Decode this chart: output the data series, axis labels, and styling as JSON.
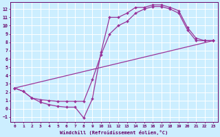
{
  "xlabel": "Windchill (Refroidissement éolien,°C)",
  "bg_color": "#cceeff",
  "grid_color": "#ffffff",
  "line_color": "#993399",
  "markersize": 2.0,
  "linewidth": 0.9,
  "xlim": [
    -0.5,
    23.5
  ],
  "ylim": [
    -1.6,
    12.8
  ],
  "xticks": [
    0,
    1,
    2,
    3,
    4,
    5,
    6,
    7,
    8,
    9,
    10,
    11,
    12,
    13,
    14,
    15,
    16,
    17,
    18,
    19,
    20,
    21,
    22,
    23
  ],
  "yticks": [
    -1,
    0,
    1,
    2,
    3,
    4,
    5,
    6,
    7,
    8,
    9,
    10,
    11,
    12
  ],
  "line1_x": [
    0,
    1,
    2,
    3,
    4,
    5,
    6,
    7,
    8,
    9,
    10,
    11,
    12,
    13,
    14,
    15,
    16,
    17,
    18,
    19,
    20,
    21,
    22,
    23
  ],
  "line1_y": [
    2.5,
    2.1,
    1.3,
    0.8,
    0.5,
    0.3,
    0.2,
    0.2,
    -1.1,
    1.2,
    6.8,
    11.0,
    11.0,
    11.5,
    12.2,
    12.2,
    12.5,
    12.5,
    12.2,
    11.8,
    9.8,
    8.5,
    8.2,
    8.2
  ],
  "line2_x": [
    0,
    1,
    2,
    3,
    4,
    5,
    6,
    7,
    8,
    9,
    10,
    11,
    12,
    13,
    14,
    15,
    16,
    17,
    18,
    19,
    20,
    21,
    22,
    23
  ],
  "line2_y": [
    2.5,
    2.1,
    1.3,
    1.1,
    1.0,
    0.9,
    0.9,
    0.9,
    0.9,
    3.5,
    6.5,
    9.0,
    10.0,
    10.5,
    11.5,
    12.0,
    12.3,
    12.3,
    12.0,
    11.5,
    9.5,
    8.2,
    8.2,
    8.2
  ],
  "line3_x": [
    0,
    23
  ],
  "line3_y": [
    2.5,
    8.2
  ]
}
